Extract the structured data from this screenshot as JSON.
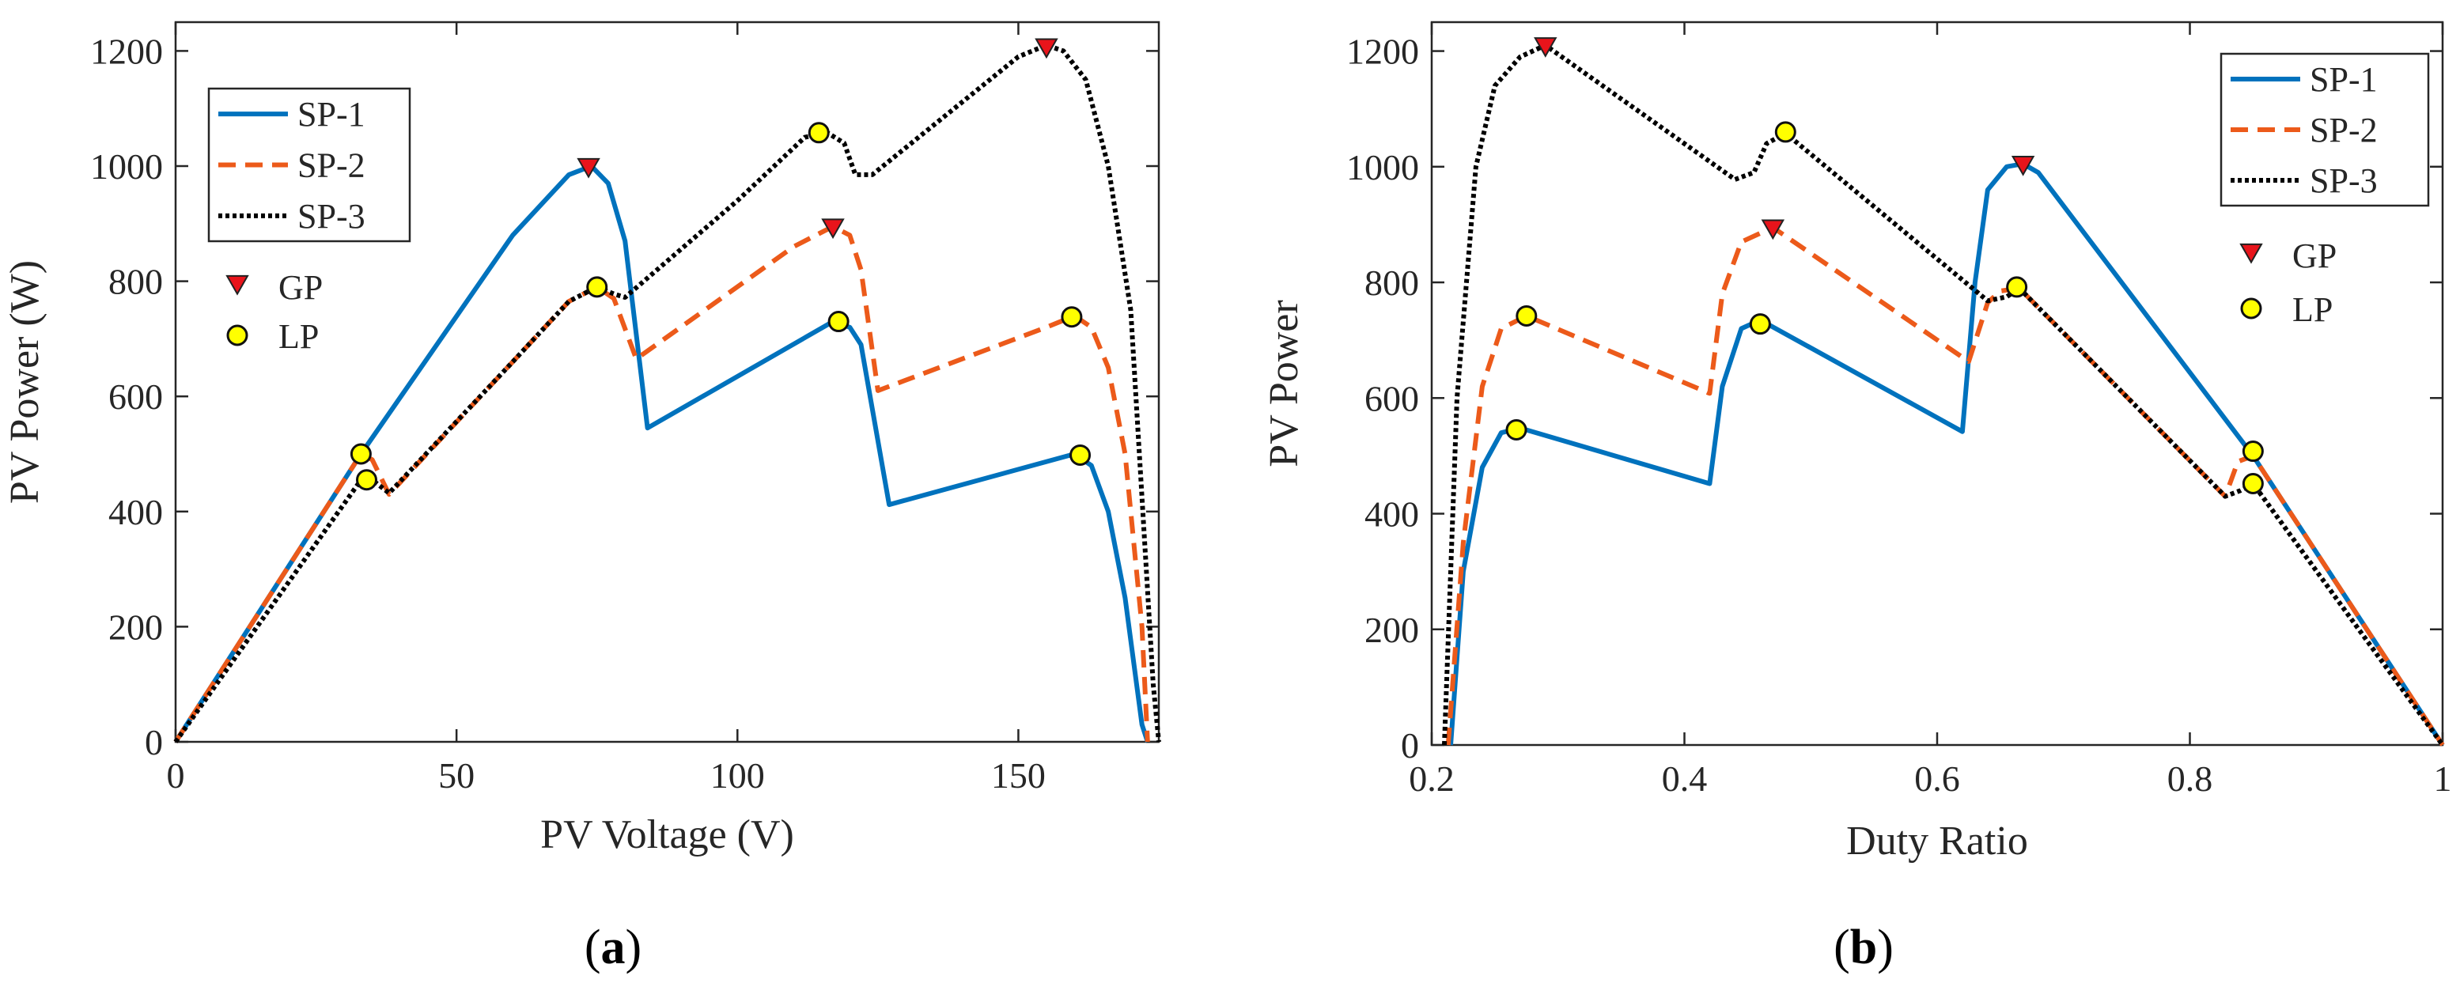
{
  "chart_data": [
    {
      "type": "line",
      "panel_label": "a",
      "xlabel": "PV Voltage (V)",
      "ylabel": "PV Power (W)",
      "xlim": [
        0,
        175
      ],
      "ylim": [
        0,
        1250
      ],
      "xticks": [
        0,
        50,
        100,
        150
      ],
      "yticks": [
        0,
        200,
        400,
        600,
        800,
        1000,
        1200
      ],
      "series": [
        {
          "name": "SP-1",
          "style": "solid",
          "color": "#0072BD",
          "x": [
            0,
            33,
            60,
            70,
            74,
            77,
            80,
            84,
            117,
            120,
            122,
            127,
            160,
            163,
            166,
            169,
            172,
            173
          ],
          "y": [
            0,
            500,
            880,
            985,
            1000,
            970,
            870,
            545,
            730,
            720,
            690,
            412,
            500,
            480,
            400,
            250,
            30,
            0
          ]
        },
        {
          "name": "SP-2",
          "style": "dashed",
          "color": "#EC5A1A",
          "x": [
            0,
            33,
            35,
            38,
            60,
            70,
            75,
            78,
            82,
            110,
            117,
            120,
            122,
            125,
            155,
            160,
            163,
            166,
            169,
            172,
            173
          ],
          "y": [
            0,
            500,
            490,
            430,
            660,
            765,
            790,
            770,
            665,
            860,
            895,
            880,
            820,
            610,
            720,
            740,
            720,
            650,
            500,
            200,
            0
          ]
        },
        {
          "name": "SP-3",
          "style": "dotted",
          "color": "#000000",
          "x": [
            0,
            33,
            35,
            38,
            60,
            70,
            75,
            78,
            80,
            100,
            112,
            116,
            119,
            121,
            124,
            150,
            155,
            158,
            162,
            166,
            170,
            174,
            175
          ],
          "y": [
            0,
            455,
            455,
            432,
            660,
            765,
            790,
            778,
            772,
            940,
            1050,
            1058,
            1040,
            985,
            985,
            1190,
            1210,
            1200,
            1150,
            1000,
            750,
            100,
            0
          ]
        }
      ],
      "markers": [
        {
          "type": "GP",
          "x": 73.5,
          "y": 1000
        },
        {
          "type": "GP",
          "x": 117,
          "y": 895
        },
        {
          "type": "GP",
          "x": 155,
          "y": 1208
        },
        {
          "type": "LP",
          "x": 33,
          "y": 500
        },
        {
          "type": "LP",
          "x": 34,
          "y": 455
        },
        {
          "type": "LP",
          "x": 75,
          "y": 790
        },
        {
          "type": "LP",
          "x": 114.5,
          "y": 1058
        },
        {
          "type": "LP",
          "x": 118,
          "y": 730
        },
        {
          "type": "LP",
          "x": 159.5,
          "y": 738
        },
        {
          "type": "LP",
          "x": 161,
          "y": 498
        }
      ],
      "legend_lines": [
        "SP-1",
        "SP-2",
        "SP-3"
      ],
      "legend_markers": [
        "GP",
        "LP"
      ]
    },
    {
      "type": "line",
      "panel_label": "b",
      "xlabel": "Duty Ratio",
      "ylabel": "PV Power",
      "xlim": [
        0.2,
        1
      ],
      "ylim": [
        0,
        1250
      ],
      "xticks": [
        0.2,
        0.4,
        0.6,
        0.8,
        1
      ],
      "yticks": [
        0,
        200,
        400,
        600,
        800,
        1000,
        1200
      ],
      "series": [
        {
          "name": "SP-1",
          "style": "solid",
          "color": "#0072BD",
          "x": [
            0.215,
            0.225,
            0.24,
            0.255,
            0.27,
            0.42,
            0.43,
            0.445,
            0.46,
            0.62,
            0.63,
            0.64,
            0.655,
            0.668,
            0.68,
            0.85,
            1.0
          ],
          "y": [
            0,
            300,
            480,
            540,
            548,
            452,
            620,
            720,
            735,
            542,
            800,
            960,
            1000,
            1005,
            990,
            500,
            0
          ]
        },
        {
          "name": "SP-2",
          "style": "dashed",
          "color": "#EC5A1A",
          "x": [
            0.213,
            0.225,
            0.24,
            0.255,
            0.275,
            0.42,
            0.43,
            0.445,
            0.47,
            0.625,
            0.64,
            0.65,
            0.665,
            0.828,
            0.838,
            0.85,
            1.0
          ],
          "y": [
            0,
            350,
            620,
            720,
            742,
            608,
            780,
            870,
            895,
            663,
            765,
            785,
            790,
            430,
            490,
            500,
            0
          ]
        },
        {
          "name": "SP-3",
          "style": "dotted",
          "color": "#000000",
          "x": [
            0.21,
            0.22,
            0.235,
            0.25,
            0.27,
            0.29,
            0.44,
            0.455,
            0.465,
            0.48,
            0.64,
            0.655,
            0.665,
            0.828,
            0.84,
            0.85,
            1.0
          ],
          "y": [
            0,
            600,
            1000,
            1140,
            1190,
            1210,
            978,
            990,
            1040,
            1058,
            768,
            775,
            790,
            430,
            440,
            452,
            0
          ]
        }
      ],
      "markers": [
        {
          "type": "GP",
          "x": 0.29,
          "y": 1210
        },
        {
          "type": "GP",
          "x": 0.47,
          "y": 895
        },
        {
          "type": "GP",
          "x": 0.668,
          "y": 1005
        },
        {
          "type": "LP",
          "x": 0.267,
          "y": 545
        },
        {
          "type": "LP",
          "x": 0.275,
          "y": 742
        },
        {
          "type": "LP",
          "x": 0.46,
          "y": 728
        },
        {
          "type": "LP",
          "x": 0.48,
          "y": 1060
        },
        {
          "type": "LP",
          "x": 0.663,
          "y": 792
        },
        {
          "type": "LP",
          "x": 0.85,
          "y": 508
        },
        {
          "type": "LP",
          "x": 0.85,
          "y": 452
        }
      ],
      "legend_lines": [
        "SP-1",
        "SP-2",
        "SP-3"
      ],
      "legend_markers": [
        "GP",
        "LP"
      ]
    }
  ],
  "captions": {
    "a": {
      "open": "(",
      "letter": "a",
      "close": ")"
    },
    "b": {
      "open": "(",
      "letter": "b",
      "close": ")"
    }
  },
  "colors": {
    "gp_marker": "#E8141B",
    "lp_marker": "#FFFF00",
    "axes": "#262626"
  }
}
